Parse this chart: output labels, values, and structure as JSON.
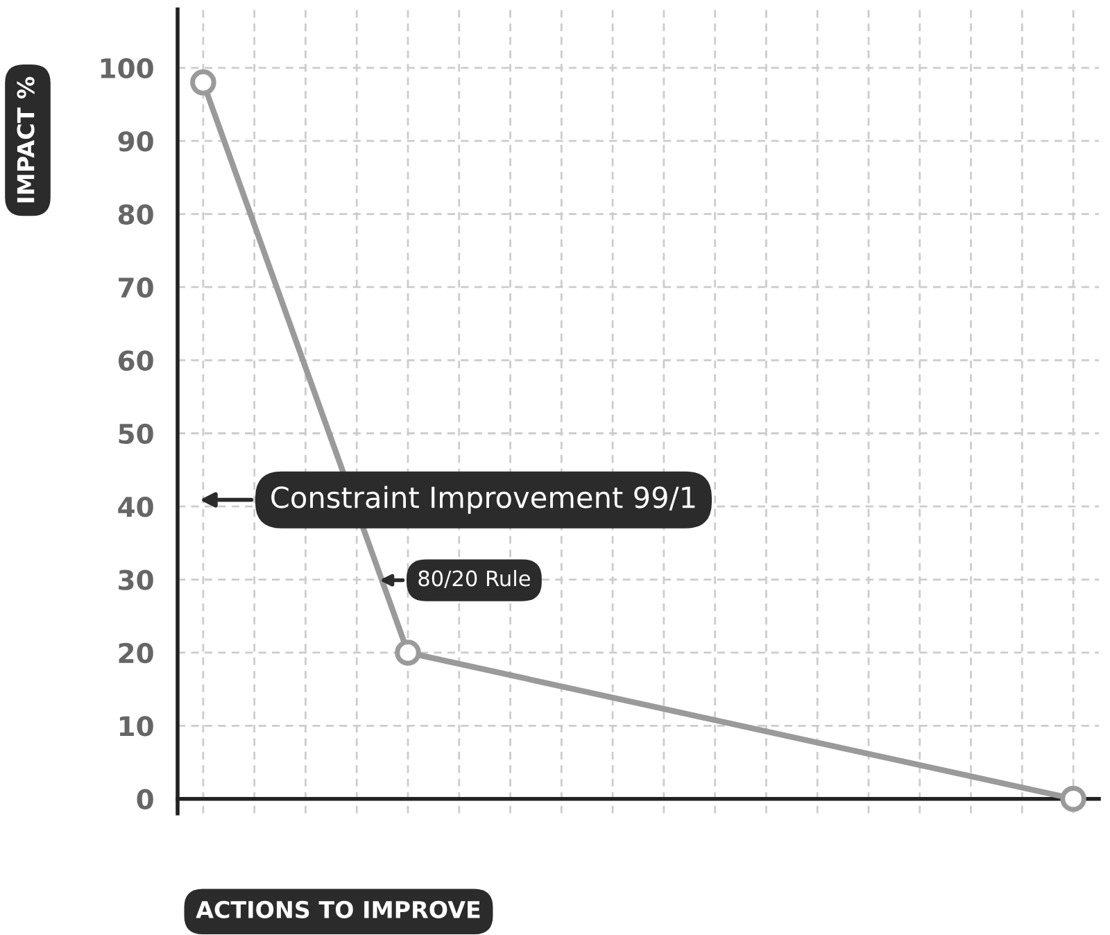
{
  "chart_data": {
    "type": "line",
    "ylabel": "IMPACT %",
    "xlabel": "ACTIONS TO IMPROVE",
    "categories": [
      null,
      null,
      null,
      null,
      null,
      null,
      null,
      null,
      null,
      null,
      null,
      null,
      null,
      null,
      null,
      null,
      null,
      null
    ],
    "series": [
      {
        "color": "#9a9a9a",
        "values": [
          98,
          null,
          null,
          null,
          20,
          null,
          null,
          null,
          null,
          null,
          null,
          null,
          null,
          null,
          null,
          null,
          null,
          0
        ]
      }
    ],
    "ylim": [
      -2,
      108
    ],
    "yticks": [
      0,
      10,
      20,
      30,
      40,
      50,
      60,
      70,
      80,
      90,
      100
    ],
    "grid": true,
    "marker": "circle",
    "line_style": "solid",
    "tick_labels": "y",
    "annotations": [
      "Constraint Improvement 99/1",
      "80/20 Rule"
    ]
  }
}
